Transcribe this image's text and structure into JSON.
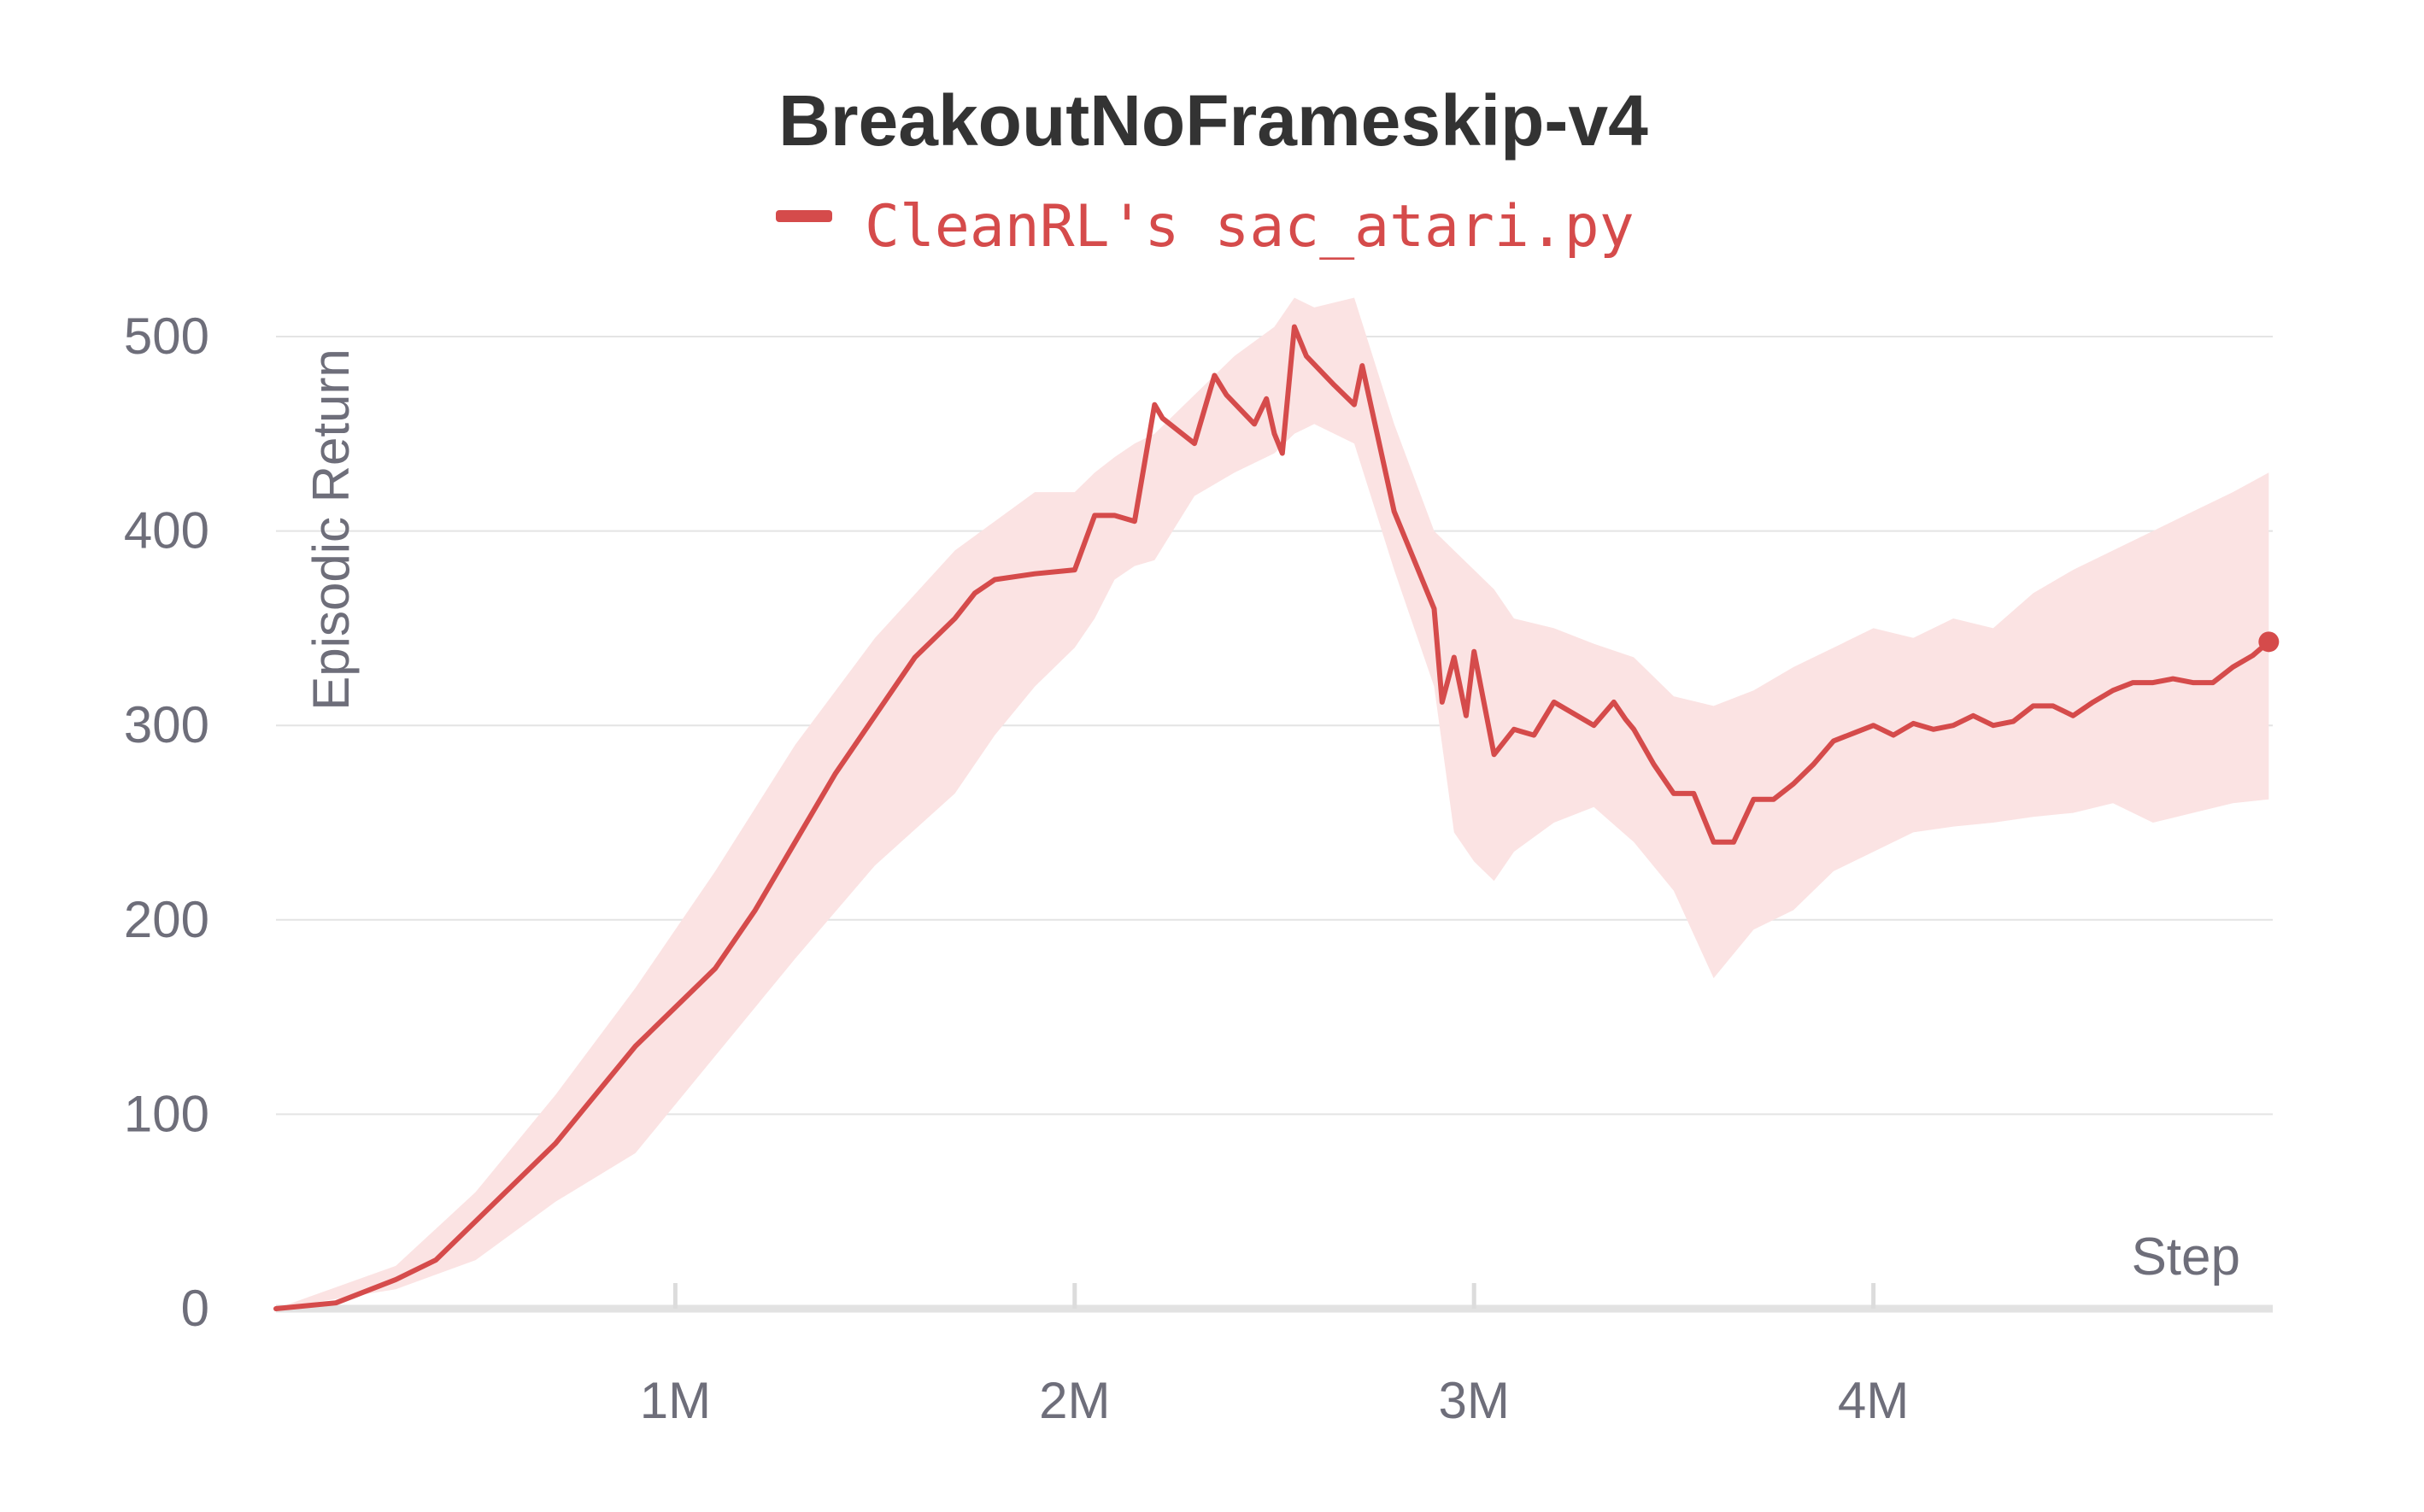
{
  "chart_data": {
    "type": "line",
    "title": "BreakoutNoFrameskip-v4",
    "xlabel": "Step",
    "ylabel": "Episodic Return",
    "xlim": [
      0,
      5000000
    ],
    "ylim": [
      0,
      500
    ],
    "x_ticks": [
      {
        "value": 1000000,
        "label": "1M"
      },
      {
        "value": 2000000,
        "label": "2M"
      },
      {
        "value": 3000000,
        "label": "3M"
      },
      {
        "value": 4000000,
        "label": "4M"
      }
    ],
    "y_ticks": [
      {
        "value": 0,
        "label": "0"
      },
      {
        "value": 100,
        "label": "100"
      },
      {
        "value": 200,
        "label": "200"
      },
      {
        "value": 300,
        "label": "300"
      },
      {
        "value": 400,
        "label": "400"
      },
      {
        "value": 500,
        "label": "500"
      }
    ],
    "grid": true,
    "legend_position": "top-center",
    "colors": {
      "series": "#d54b4b",
      "band": "#fbe3e3",
      "grid": "#e4e4e4",
      "axis_text": "#6e6e7a",
      "title": "#333333"
    },
    "series": [
      {
        "name": "CleanRL's sac_atari.py",
        "x": [
          0,
          150000,
          300000,
          400000,
          500000,
          600000,
          700000,
          800000,
          900000,
          1000000,
          1100000,
          1200000,
          1300000,
          1400000,
          1500000,
          1600000,
          1700000,
          1750000,
          1800000,
          1900000,
          2000000,
          2050000,
          2100000,
          2150000,
          2200000,
          2220000,
          2300000,
          2350000,
          2380000,
          2450000,
          2480000,
          2500000,
          2520000,
          2550000,
          2580000,
          2650000,
          2700000,
          2720000,
          2800000,
          2850000,
          2900000,
          2920000,
          2950000,
          2980000,
          3000000,
          3050000,
          3100000,
          3150000,
          3200000,
          3250000,
          3300000,
          3350000,
          3380000,
          3400000,
          3450000,
          3500000,
          3550000,
          3600000,
          3650000,
          3700000,
          3750000,
          3800000,
          3850000,
          3900000,
          3950000,
          4000000,
          4050000,
          4100000,
          4150000,
          4200000,
          4250000,
          4300000,
          4350000,
          4400000,
          4450000,
          4500000,
          4550000,
          4600000,
          4650000,
          4700000,
          4750000,
          4800000,
          4850000,
          4900000,
          4950000,
          4990000
        ],
        "values": [
          0,
          3,
          15,
          25,
          45,
          65,
          85,
          110,
          135,
          155,
          175,
          205,
          240,
          275,
          305,
          335,
          355,
          368,
          375,
          378,
          380,
          408,
          408,
          405,
          465,
          458,
          445,
          480,
          470,
          455,
          468,
          450,
          440,
          505,
          490,
          475,
          465,
          485,
          410,
          385,
          360,
          312,
          335,
          305,
          338,
          285,
          298,
          295,
          312,
          306,
          300,
          312,
          303,
          298,
          280,
          265,
          265,
          240,
          240,
          262,
          262,
          270,
          280,
          292,
          296,
          300,
          295,
          301,
          298,
          300,
          305,
          300,
          302,
          310,
          310,
          305,
          312,
          318,
          322,
          322,
          324,
          322,
          322,
          330,
          336,
          343
        ]
      }
    ],
    "band": {
      "x": [
        0,
        300000,
        500000,
        700000,
        900000,
        1100000,
        1300000,
        1500000,
        1700000,
        1800000,
        1900000,
        2000000,
        2050000,
        2100000,
        2150000,
        2200000,
        2300000,
        2400000,
        2500000,
        2550000,
        2600000,
        2700000,
        2800000,
        2900000,
        2950000,
        3000000,
        3050000,
        3100000,
        3200000,
        3300000,
        3400000,
        3500000,
        3600000,
        3700000,
        3800000,
        3900000,
        4000000,
        4100000,
        4200000,
        4300000,
        4400000,
        4500000,
        4600000,
        4700000,
        4800000,
        4900000,
        4990000
      ],
      "upper": [
        0,
        22,
        60,
        110,
        165,
        225,
        290,
        345,
        390,
        405,
        420,
        420,
        430,
        438,
        445,
        450,
        470,
        490,
        505,
        520,
        515,
        520,
        455,
        400,
        390,
        380,
        370,
        355,
        350,
        342,
        335,
        315,
        310,
        318,
        330,
        340,
        350,
        345,
        355,
        350,
        368,
        380,
        390,
        400,
        410,
        420,
        430
      ],
      "lower": [
        0,
        10,
        25,
        55,
        80,
        130,
        180,
        228,
        265,
        295,
        320,
        340,
        355,
        375,
        382,
        385,
        418,
        430,
        440,
        450,
        455,
        445,
        380,
        320,
        245,
        230,
        220,
        235,
        250,
        258,
        240,
        215,
        170,
        195,
        205,
        225,
        235,
        245,
        248,
        250,
        253,
        255,
        260,
        250,
        255,
        260,
        262
      ]
    }
  }
}
